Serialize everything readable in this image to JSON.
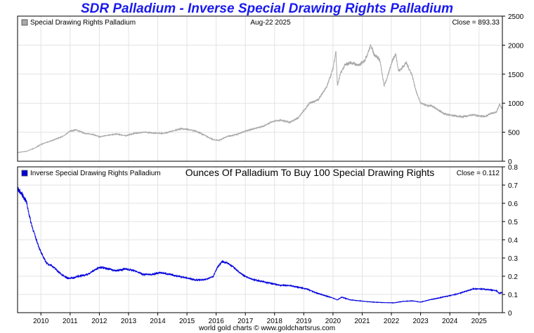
{
  "title": "SDR Palladium - Inverse Special Drawing Rights Palladium",
  "footer": "world gold charts © www.goldchartsrus.com",
  "colors": {
    "title": "#1a1aee",
    "upper_series": "#a9a9a9",
    "lower_series": "#0000dd",
    "grid": "#e3e3e3"
  },
  "chart_data": [
    {
      "type": "line",
      "legend": "Special Drawing Rights Palladium",
      "date_label": "Aug-22 2025",
      "close_label": "Close = 893.33",
      "ylim": [
        0,
        2500
      ],
      "yticks": [
        0,
        500,
        1000,
        1500,
        2000,
        2500
      ],
      "xlim": [
        2009.2,
        2025.8
      ],
      "x": [
        2009.2,
        2009.5,
        2009.8,
        2010.0,
        2010.4,
        2010.8,
        2011.0,
        2011.2,
        2011.5,
        2011.8,
        2012.0,
        2012.3,
        2012.6,
        2012.9,
        2013.2,
        2013.5,
        2013.8,
        2014.2,
        2014.5,
        2014.8,
        2015.0,
        2015.3,
        2015.6,
        2015.9,
        2016.1,
        2016.4,
        2016.7,
        2017.0,
        2017.3,
        2017.6,
        2017.9,
        2018.2,
        2018.5,
        2018.8,
        2019.0,
        2019.2,
        2019.5,
        2019.8,
        2020.0,
        2020.1,
        2020.15,
        2020.25,
        2020.4,
        2020.6,
        2020.9,
        2021.1,
        2021.3,
        2021.4,
        2021.6,
        2021.75,
        2021.9,
        2022.0,
        2022.15,
        2022.25,
        2022.35,
        2022.5,
        2022.7,
        2022.85,
        2023.0,
        2023.2,
        2023.4,
        2023.6,
        2023.8,
        2024.0,
        2024.2,
        2024.4,
        2024.6,
        2024.8,
        2025.0,
        2025.2,
        2025.4,
        2025.6,
        2025.7,
        2025.8
      ],
      "values": [
        150,
        170,
        230,
        290,
        360,
        440,
        520,
        540,
        480,
        460,
        420,
        450,
        470,
        440,
        480,
        500,
        490,
        480,
        520,
        560,
        550,
        520,
        450,
        370,
        360,
        430,
        460,
        520,
        560,
        600,
        680,
        710,
        670,
        740,
        870,
        1000,
        1060,
        1300,
        1600,
        1900,
        1300,
        1500,
        1650,
        1700,
        1650,
        1750,
        2000,
        1850,
        1750,
        1300,
        1500,
        1700,
        1850,
        1550,
        1600,
        1700,
        1500,
        1200,
        1000,
        960,
        950,
        880,
        820,
        800,
        780,
        770,
        780,
        800,
        780,
        770,
        820,
        850,
        980,
        893
      ]
    },
    {
      "type": "line",
      "legend": "Inverse Special Drawing Rights Palladium",
      "subtitle": "Ounces Of Palladium To Buy 100 Special Drawing Rights",
      "close_label": "Close = 0.112",
      "ylim": [
        0,
        0.8
      ],
      "yticks": [
        0,
        0.1,
        0.2,
        0.3,
        0.4,
        0.5,
        0.6,
        0.7,
        0.8
      ],
      "xlim": [
        2009.2,
        2025.8
      ],
      "x": [
        2009.2,
        2009.35,
        2009.5,
        2009.65,
        2009.8,
        2010.0,
        2010.2,
        2010.35,
        2010.5,
        2010.7,
        2010.9,
        2011.1,
        2011.3,
        2011.6,
        2011.8,
        2012.0,
        2012.3,
        2012.6,
        2012.9,
        2013.2,
        2013.5,
        2013.8,
        2014.1,
        2014.4,
        2014.7,
        2015.0,
        2015.3,
        2015.6,
        2015.9,
        2016.05,
        2016.2,
        2016.4,
        2016.6,
        2016.8,
        2017.0,
        2017.3,
        2017.6,
        2017.9,
        2018.2,
        2018.5,
        2018.8,
        2019.1,
        2019.4,
        2019.7,
        2020.0,
        2020.15,
        2020.3,
        2020.6,
        2020.9,
        2021.2,
        2021.5,
        2021.8,
        2022.1,
        2022.4,
        2022.7,
        2023.0,
        2023.3,
        2023.6,
        2023.9,
        2024.2,
        2024.5,
        2024.8,
        2025.1,
        2025.4,
        2025.6,
        2025.7,
        2025.8
      ],
      "values": [
        0.68,
        0.65,
        0.61,
        0.5,
        0.42,
        0.33,
        0.27,
        0.26,
        0.24,
        0.21,
        0.19,
        0.19,
        0.2,
        0.21,
        0.23,
        0.25,
        0.24,
        0.23,
        0.24,
        0.23,
        0.21,
        0.21,
        0.22,
        0.21,
        0.2,
        0.19,
        0.18,
        0.18,
        0.2,
        0.25,
        0.28,
        0.27,
        0.25,
        0.22,
        0.2,
        0.18,
        0.17,
        0.16,
        0.15,
        0.15,
        0.14,
        0.13,
        0.11,
        0.095,
        0.08,
        0.07,
        0.085,
        0.07,
        0.065,
        0.06,
        0.057,
        0.055,
        0.054,
        0.062,
        0.065,
        0.058,
        0.07,
        0.08,
        0.09,
        0.1,
        0.115,
        0.13,
        0.13,
        0.125,
        0.12,
        0.105,
        0.112
      ]
    }
  ],
  "x_tick_labels": [
    "2010",
    "2011",
    "2012",
    "2013",
    "2014",
    "2015",
    "2016",
    "2017",
    "2018",
    "2019",
    "2020",
    "2021",
    "2022",
    "2023",
    "2024",
    "2025"
  ]
}
